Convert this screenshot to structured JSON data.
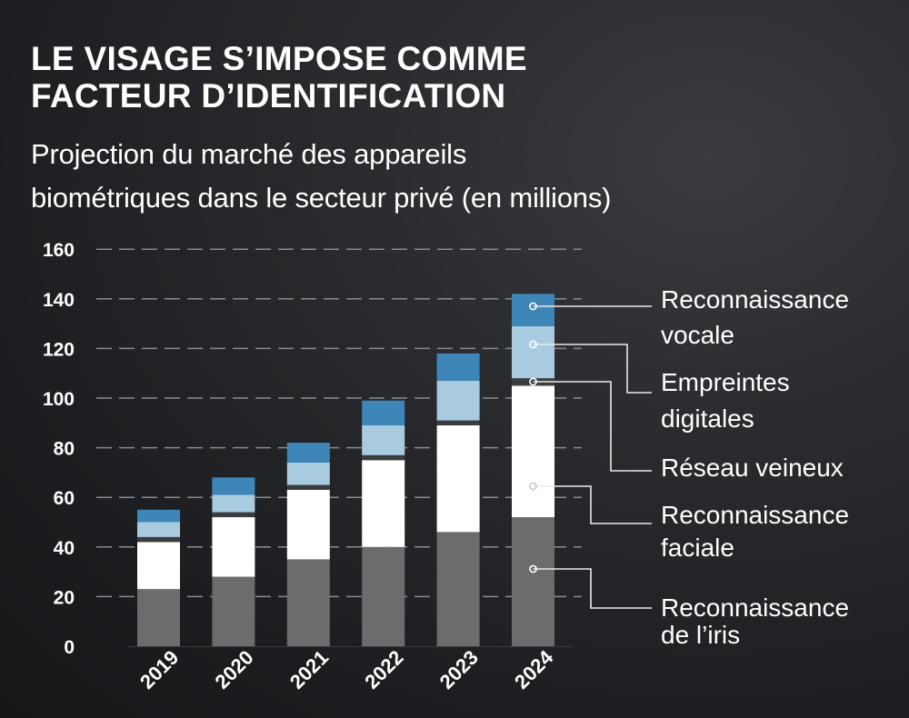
{
  "header": {
    "title_line1": "LE VISAGE S’IMPOSE COMME",
    "title_line2": "FACTEUR D’IDENTIFICATION",
    "subtitle_line1": "Projection du marché des appareils",
    "subtitle_line2": "biométriques dans le secteur privé (en millions)"
  },
  "chart_data": {
    "type": "bar",
    "stacked": true,
    "title": "LE VISAGE S’IMPOSE COMME FACTEUR D’IDENTIFICATION",
    "subtitle": "Projection du marché des appareils biométriques dans le secteur privé (en millions)",
    "xlabel": "",
    "ylabel": "",
    "ylim": [
      0,
      160
    ],
    "yticks": [
      0,
      20,
      40,
      60,
      80,
      100,
      120,
      140,
      160
    ],
    "grid": true,
    "legend_placement": "right",
    "categories": [
      "2019",
      "2020",
      "2021",
      "2022",
      "2023",
      "2024"
    ],
    "series": [
      {
        "name": "Reconnaissance de l’iris",
        "label_lines": [
          "Reconnaissance",
          "de l’iris"
        ],
        "color": "#6b6c6e",
        "values": [
          23,
          28,
          35,
          40,
          46,
          52
        ]
      },
      {
        "name": "Reconnaissance faciale",
        "label_lines": [
          "Reconnaissance",
          "faciale"
        ],
        "color": "#ffffff",
        "values": [
          19,
          24,
          28,
          35,
          43,
          53
        ]
      },
      {
        "name": "Réseau veineux",
        "label_lines": [
          "Réseau veineux"
        ],
        "color": "#3b3c3f",
        "values": [
          2,
          2,
          2,
          2,
          2,
          3
        ]
      },
      {
        "name": "Empreintes digitales",
        "label_lines": [
          "Empreintes",
          "digitales"
        ],
        "color": "#a9cbe0",
        "values": [
          6,
          7,
          9,
          12,
          16,
          21
        ]
      },
      {
        "name": "Reconnaissance vocale",
        "label_lines": [
          "Reconnaissance",
          "vocale"
        ],
        "color": "#3e86b8",
        "values": [
          5,
          7,
          8,
          10,
          11,
          13
        ]
      }
    ]
  }
}
